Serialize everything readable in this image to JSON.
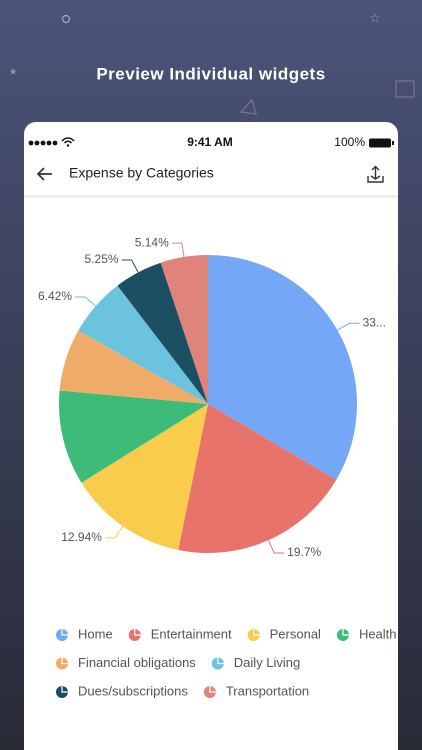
{
  "banner": {
    "title": "Preview Individual widgets"
  },
  "status_bar": {
    "time": "9:41 AM",
    "battery": "100%"
  },
  "header": {
    "title": "Expense by Categories"
  },
  "chart_data": {
    "type": "pie",
    "categories": [
      "Home",
      "Entertainment",
      "Personal",
      "Health",
      "Financial obligations",
      "Daily Living",
      "Dues/subscriptions",
      "Transportation"
    ],
    "values": [
      33.5,
      19.7,
      12.94,
      10.3,
      6.75,
      6.42,
      5.25,
      5.14
    ],
    "value_labels": [
      "33...",
      "19.7%",
      "12.94%",
      null,
      null,
      "6.42%",
      "5.25%",
      "5.14%"
    ],
    "colors": [
      "#74a7f5",
      "#e8736a",
      "#f9cd4b",
      "#3dbb78",
      "#f0ab68",
      "#6cc3dd",
      "#1c4f61",
      "#e0837a"
    ],
    "legend": "bottom"
  }
}
